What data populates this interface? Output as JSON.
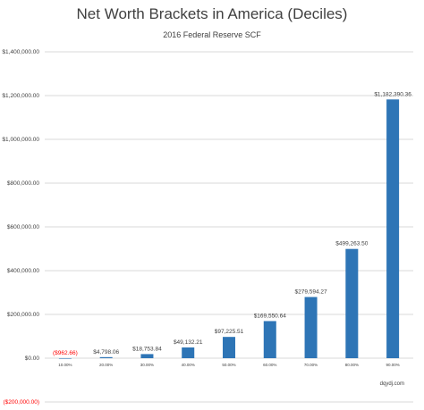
{
  "chart_data": {
    "type": "bar",
    "title": "Net Worth Brackets in America (Deciles)",
    "subtitle": "2016 Federal Reserve SCF",
    "xlabel": "",
    "ylabel": "",
    "categories": [
      "10.00%",
      "20.00%",
      "30.00%",
      "40.00%",
      "50.00%",
      "60.00%",
      "70.00%",
      "80.00%",
      "90.00%"
    ],
    "values": [
      -962.66,
      4798.06,
      18753.84,
      49132.21,
      97225.51,
      169550.64,
      279594.27,
      499263.5,
      1182390.36
    ],
    "data_labels": [
      "($962.66)",
      "$4,798.06",
      "$18,753.84",
      "$49,132.21",
      "$97,225.51",
      "$169,550.64",
      "$279,594.27",
      "$499,263.50",
      "$1,182,390.36"
    ],
    "y_ticks": [
      -200000,
      0,
      200000,
      400000,
      600000,
      800000,
      1000000,
      1200000,
      1400000
    ],
    "y_tick_labels": [
      "($200,000.00)",
      "$0.00",
      "$200,000.00",
      "$400,000.00",
      "$600,000.00",
      "$800,000.00",
      "$1,000,000.00",
      "$1,200,000.00",
      "$1,400,000.00"
    ],
    "ylim": [
      -200000,
      1400000
    ],
    "grid": true,
    "legend": "none",
    "bar_color": "#2E75B6",
    "negative_label_color": "#FF0000",
    "text_color": "#404040",
    "grid_color": "#D9D9D9"
  },
  "watermark": "dqydj.com"
}
